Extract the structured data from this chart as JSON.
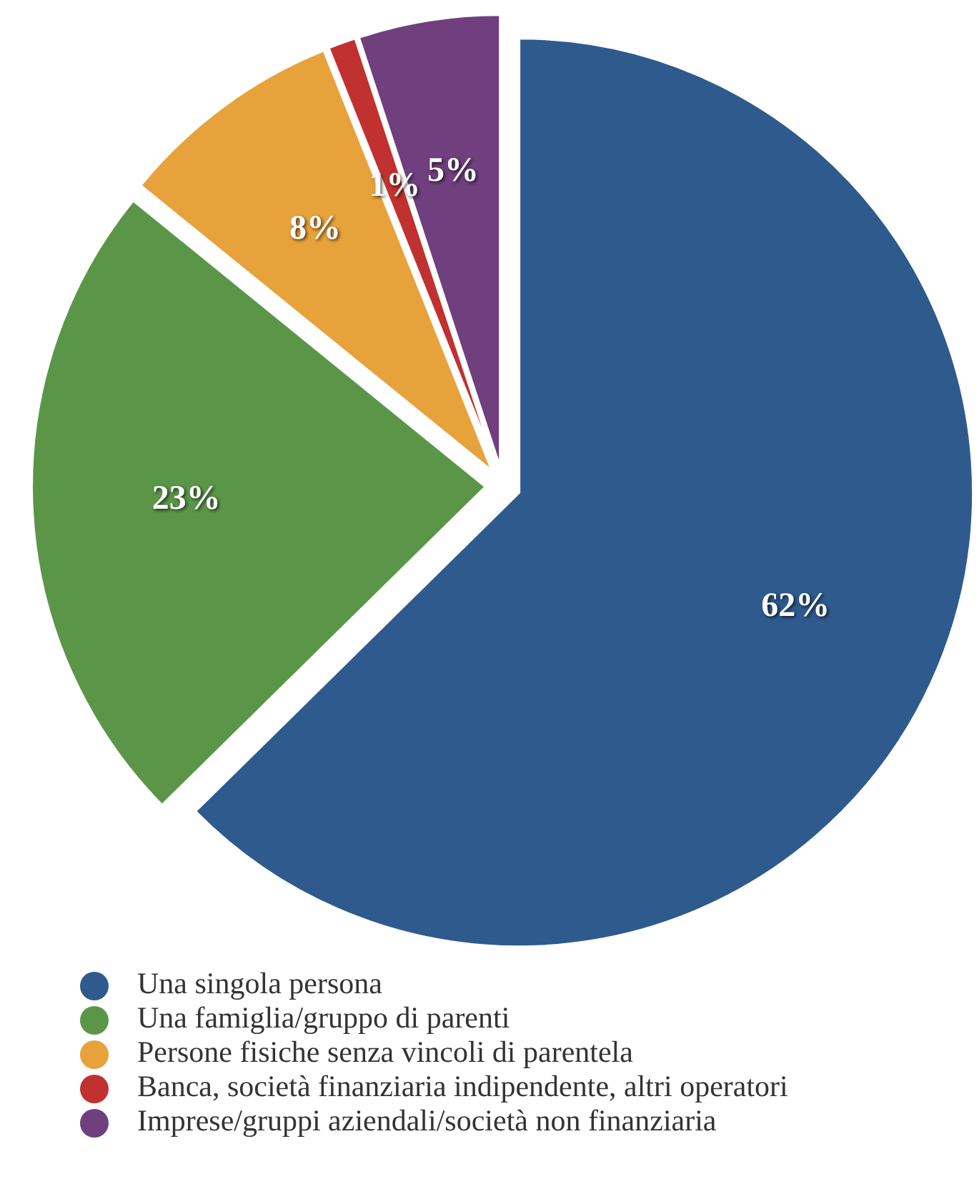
{
  "chart_data": {
    "type": "pie",
    "categories": [
      "Una singola persona",
      "Una famiglia/gruppo di parenti",
      "Persone fisiche senza vincoli di parentela",
      "Banca, società finanziaria indipendente, altri operatori",
      "Imprese/gruppi aziendali/società non finanziaria"
    ],
    "values": [
      62,
      23,
      8,
      1,
      5
    ],
    "value_labels": [
      "62%",
      "23%",
      "8%",
      "1%",
      "5%"
    ],
    "colors": [
      "#2e5a8e",
      "#5b9648",
      "#e8a23c",
      "#c0312f",
      "#6f3f7e"
    ],
    "legend": "bottom"
  }
}
